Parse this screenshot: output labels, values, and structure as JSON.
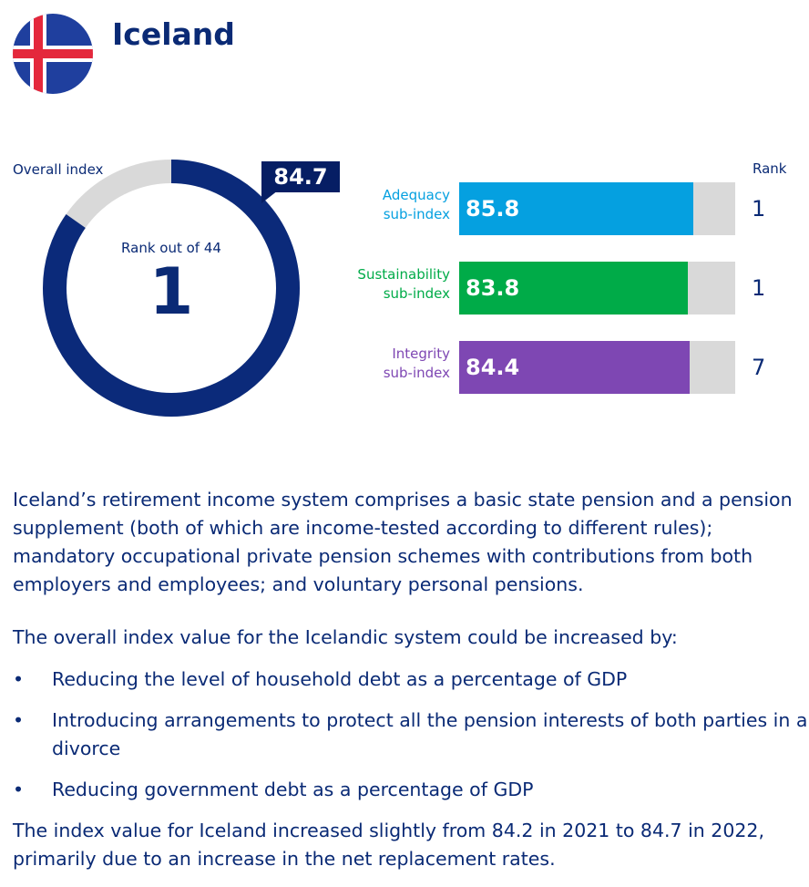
{
  "header": {
    "country": "Iceland",
    "flag_colors": {
      "blue": "#1f3f9e",
      "white": "#ffffff",
      "red": "#e4283c"
    }
  },
  "overall": {
    "label": "Overall index",
    "value": "84.7",
    "rank_caption": "Rank out of 44",
    "rank": "1",
    "gauge_fraction": 0.847,
    "ring_color": "#0b2a7a",
    "track_color": "#d9d9d9"
  },
  "chart_data": {
    "type": "bar",
    "rank_header": "Rank",
    "max": 100,
    "categories": [
      "Adequacy sub-index",
      "Sustainability sub-index",
      "Integrity sub-index"
    ],
    "bars": [
      {
        "label_line1": "Adequacy",
        "label_line2": "sub-index",
        "value": 85.8,
        "value_label": "85.8",
        "rank": "1",
        "color": "#05a0e0"
      },
      {
        "label_line1": "Sustainability",
        "label_line2": "sub-index",
        "value": 83.8,
        "value_label": "83.8",
        "rank": "1",
        "color": "#00ab48"
      },
      {
        "label_line1": "Integrity",
        "label_line2": "sub-index",
        "value": 84.4,
        "value_label": "84.4",
        "rank": "7",
        "color": "#7e47b3"
      }
    ]
  },
  "text": {
    "description": "Iceland’s retirement income system comprises a basic state pension and a pension supplement (both of which are income-tested according to different rules); mandatory occupational private pension schemes with contributions from both employers and employees; and voluntary personal pensions.",
    "improve_intro": "The overall index value for the Icelandic system could be increased by:",
    "bullet_symbol": "•",
    "bullets": [
      "Reducing the level of household debt as a percentage of GDP",
      "Introducing arrangements to protect all the pension interests of both parties in a divorce",
      "Reducing government debt as a percentage of GDP"
    ],
    "conclusion": "The index value for Iceland increased slightly from 84.2 in 2021 to 84.7 in 2022, primarily due to an increase in the net replacement rates."
  }
}
